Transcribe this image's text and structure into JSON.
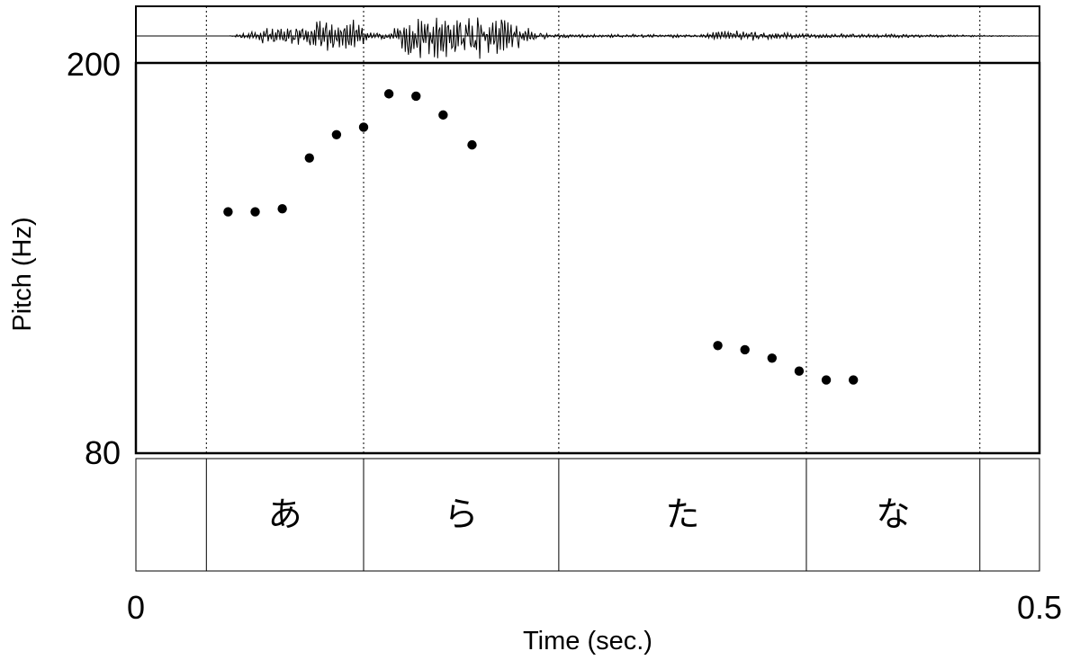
{
  "chart_data": {
    "type": "scatter",
    "title": "",
    "xlabel": "Time (sec.)",
    "ylabel": "Pitch (Hz)",
    "xlim": [
      0,
      0.5
    ],
    "ylim": [
      80,
      200
    ],
    "x_tick_labels": [
      "0",
      "0.5"
    ],
    "y_tick_labels": [
      "80",
      "200"
    ],
    "log_scale_y": true,
    "grid": false,
    "series": [
      {
        "points": [
          {
            "x": 0.051,
            "y": 141
          },
          {
            "x": 0.066,
            "y": 141
          },
          {
            "x": 0.081,
            "y": 142
          },
          {
            "x": 0.096,
            "y": 160
          },
          {
            "x": 0.111,
            "y": 169
          },
          {
            "x": 0.126,
            "y": 172
          },
          {
            "x": 0.14,
            "y": 186
          },
          {
            "x": 0.155,
            "y": 185
          },
          {
            "x": 0.17,
            "y": 177
          },
          {
            "x": 0.186,
            "y": 165
          },
          {
            "x": 0.322,
            "y": 103
          },
          {
            "x": 0.337,
            "y": 102
          },
          {
            "x": 0.352,
            "y": 100
          },
          {
            "x": 0.367,
            "y": 97
          },
          {
            "x": 0.382,
            "y": 95
          },
          {
            "x": 0.397,
            "y": 95
          }
        ]
      }
    ],
    "segments": [
      {
        "start": 0.039,
        "end": 0.126,
        "label": "あ"
      },
      {
        "start": 0.126,
        "end": 0.234,
        "label": "ら"
      },
      {
        "start": 0.234,
        "end": 0.371,
        "label": "た"
      },
      {
        "start": 0.371,
        "end": 0.467,
        "label": "な"
      }
    ],
    "boundaries": [
      0.039,
      0.126,
      0.234,
      0.371,
      0.467
    ],
    "waveform_panel": true
  }
}
